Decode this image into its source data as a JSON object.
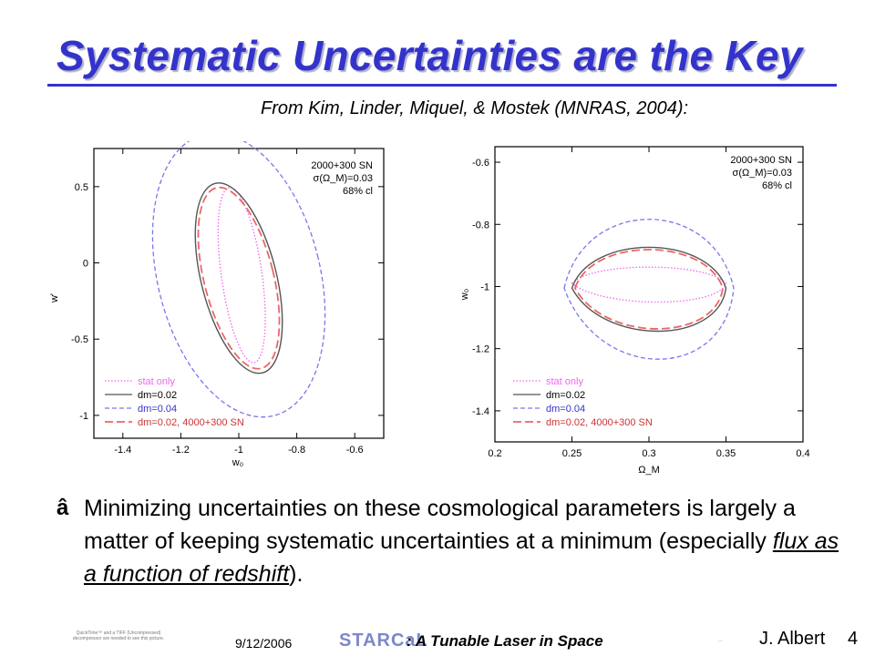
{
  "slide": {
    "title": "Systematic Uncertainties are the Key",
    "citation": "From Kim, Linder, Miquel, & Mostek (MNRAS, 2004):",
    "bullet_symbol": "â",
    "bullet_text_1": "Minimizing uncertainties on these cosmological parameters is largely a matter of keeping systematic uncertainties at a minimum (especially ",
    "bullet_emphasis": "flux as a function of redshift",
    "bullet_text_2": ")."
  },
  "footer": {
    "date": "9/12/2006",
    "brand": "STARCaL",
    "subtitle": ": A Tunable Laser in Space",
    "author": "J. Albert",
    "page": "4",
    "quicktime_note": "QuickTime™ and a TIFF (Uncompressed) decompressor are needed to see this picture.",
    "tiny_note": "..."
  },
  "colors": {
    "title": "#3333cc",
    "stat_only": "#ee66ee",
    "dm002": "#555555",
    "dm004": "#7777ee",
    "dm002_4000": "#ee6666"
  },
  "chart_data": [
    {
      "type": "contour",
      "annotation": [
        "2000+300 SN",
        "σ(Ω_M)=0.03",
        "68% cl"
      ],
      "xlabel": "w₀",
      "ylabel": "w'",
      "xlim": [
        -1.5,
        -0.5
      ],
      "ylim": [
        -1.15,
        0.75
      ],
      "x_ticks": [
        "-1.4",
        "-1.2",
        "-1",
        "-0.8",
        "-0.6"
      ],
      "y_ticks": [
        "0.5",
        "0",
        "-0.5",
        "-1"
      ],
      "legend": [
        "stat only",
        "dm=0.02",
        "dm=0.04",
        "dm=0.02, 4000+300 SN"
      ],
      "series": [
        {
          "name": "stat only",
          "style": "dotted",
          "center": [
            -0.99,
            -0.08
          ],
          "extent": [
            0.07,
            0.58
          ],
          "tilt_deg": -8
        },
        {
          "name": "dm=0.02",
          "style": "solid",
          "center": [
            -1.0,
            -0.1
          ],
          "extent": [
            0.13,
            0.64
          ],
          "tilt_deg": -14
        },
        {
          "name": "dm=0.04",
          "style": "dashed",
          "center": [
            -1.0,
            -0.08
          ],
          "extent": [
            0.28,
            0.95
          ],
          "tilt_deg": -14
        },
        {
          "name": "dm=0.02, 4000+300 SN",
          "style": "long-dashed",
          "center": [
            -1.0,
            -0.1
          ],
          "extent": [
            0.12,
            0.61
          ],
          "tilt_deg": -14
        }
      ]
    },
    {
      "type": "contour",
      "annotation": [
        "2000+300 SN",
        "σ(Ω_M)=0.03",
        "68% cl"
      ],
      "xlabel": "Ω_M",
      "ylabel": "w₀",
      "xlim": [
        0.2,
        0.4
      ],
      "ylim": [
        -1.5,
        -0.55
      ],
      "x_ticks": [
        "0.2",
        "0.25",
        "0.3",
        "0.35",
        "0.4"
      ],
      "y_ticks": [
        "-0.6",
        "-0.8",
        "-1",
        "-1.2",
        "-1.4"
      ],
      "legend": [
        "stat only",
        "dm=0.02",
        "dm=0.04",
        "dm=0.02, 4000+300 SN"
      ],
      "series": [
        {
          "name": "stat only",
          "style": "dotted",
          "x_range": [
            0.25,
            0.35
          ],
          "y_top": -0.92,
          "y_bottom": -1.07
        },
        {
          "name": "dm=0.02",
          "style": "solid",
          "x_range": [
            0.25,
            0.35
          ],
          "y_top": -0.83,
          "y_bottom": -1.19
        },
        {
          "name": "dm=0.04",
          "style": "dashed",
          "x_range": [
            0.245,
            0.355
          ],
          "y_top": -0.71,
          "y_bottom": -1.31
        },
        {
          "name": "dm=0.02, 4000+300 SN",
          "style": "long-dashed",
          "x_range": [
            0.252,
            0.348
          ],
          "y_top": -0.84,
          "y_bottom": -1.18
        }
      ]
    }
  ]
}
